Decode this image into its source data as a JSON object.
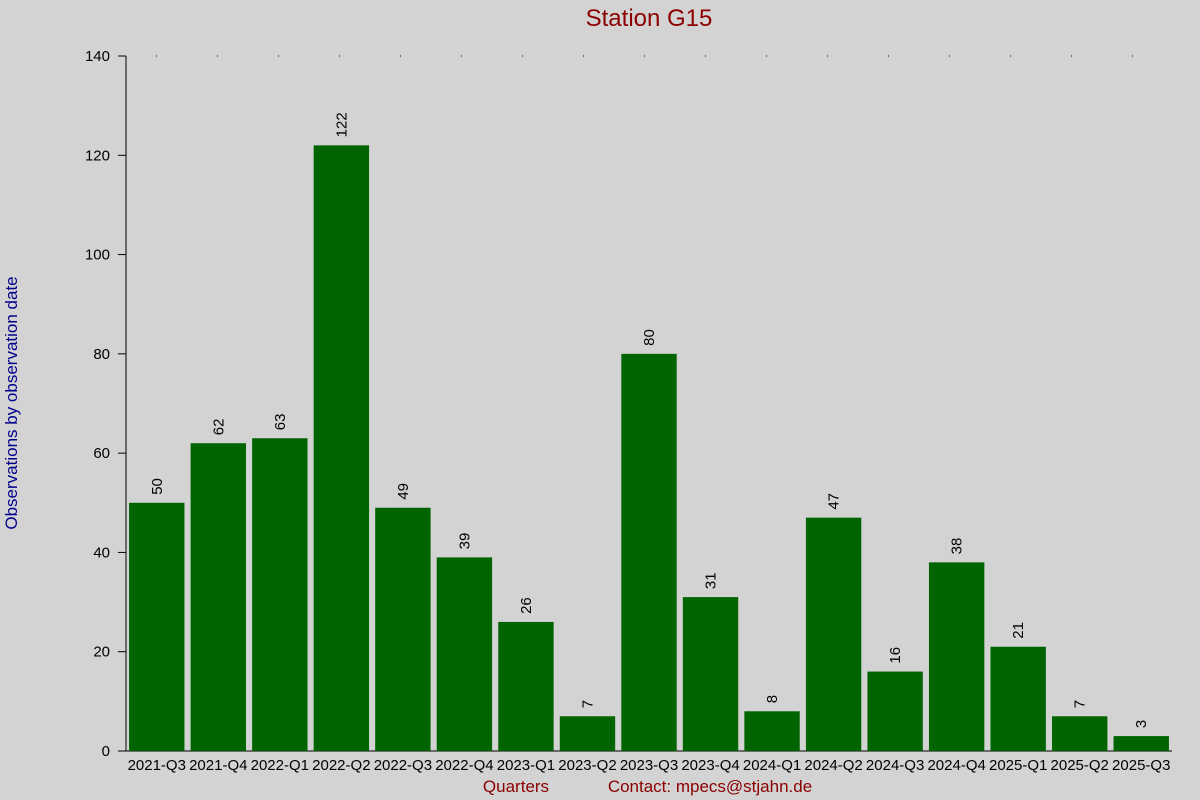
{
  "chart_data": {
    "type": "bar",
    "title": "Station G15",
    "x_label": "Quarters",
    "contact": "Contact: mpecs@stjahn.de",
    "y_label": "Observations by observation date",
    "categories": [
      "2021-Q3",
      "2021-Q4",
      "2022-Q1",
      "2022-Q2",
      "2022-Q3",
      "2022-Q4",
      "2023-Q1",
      "2023-Q2",
      "2023-Q3",
      "2023-Q4",
      "2024-Q1",
      "2024-Q2",
      "2024-Q3",
      "2024-Q4",
      "2025-Q1",
      "2025-Q2",
      "2025-Q3"
    ],
    "values": [
      50,
      62,
      63,
      122,
      49,
      39,
      26,
      7,
      80,
      31,
      8,
      47,
      16,
      38,
      21,
      7,
      3
    ],
    "color": "#006400",
    "ylim": [
      0,
      140
    ],
    "yticks": [
      0,
      20,
      40,
      60,
      80,
      100,
      120,
      140
    ],
    "grid": false
  }
}
